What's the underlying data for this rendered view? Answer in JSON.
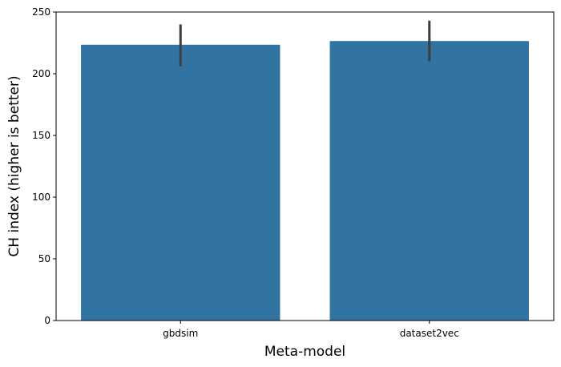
{
  "chart_data": {
    "type": "bar",
    "categories": [
      "gbdsim",
      "dataset2vec"
    ],
    "values": [
      223.5,
      226.5
    ],
    "error_bars": [
      [
        206,
        240
      ],
      [
        210,
        243
      ]
    ],
    "xlabel": "Meta-model",
    "ylabel": "CH index (higher is better)",
    "ylim": [
      0,
      250
    ],
    "yticks": [
      0,
      50,
      100,
      150,
      200,
      250
    ],
    "grid": false,
    "colors": {
      "bar": "#3274a1",
      "error_bar": "#3d3d3d",
      "axis": "#000000"
    }
  }
}
